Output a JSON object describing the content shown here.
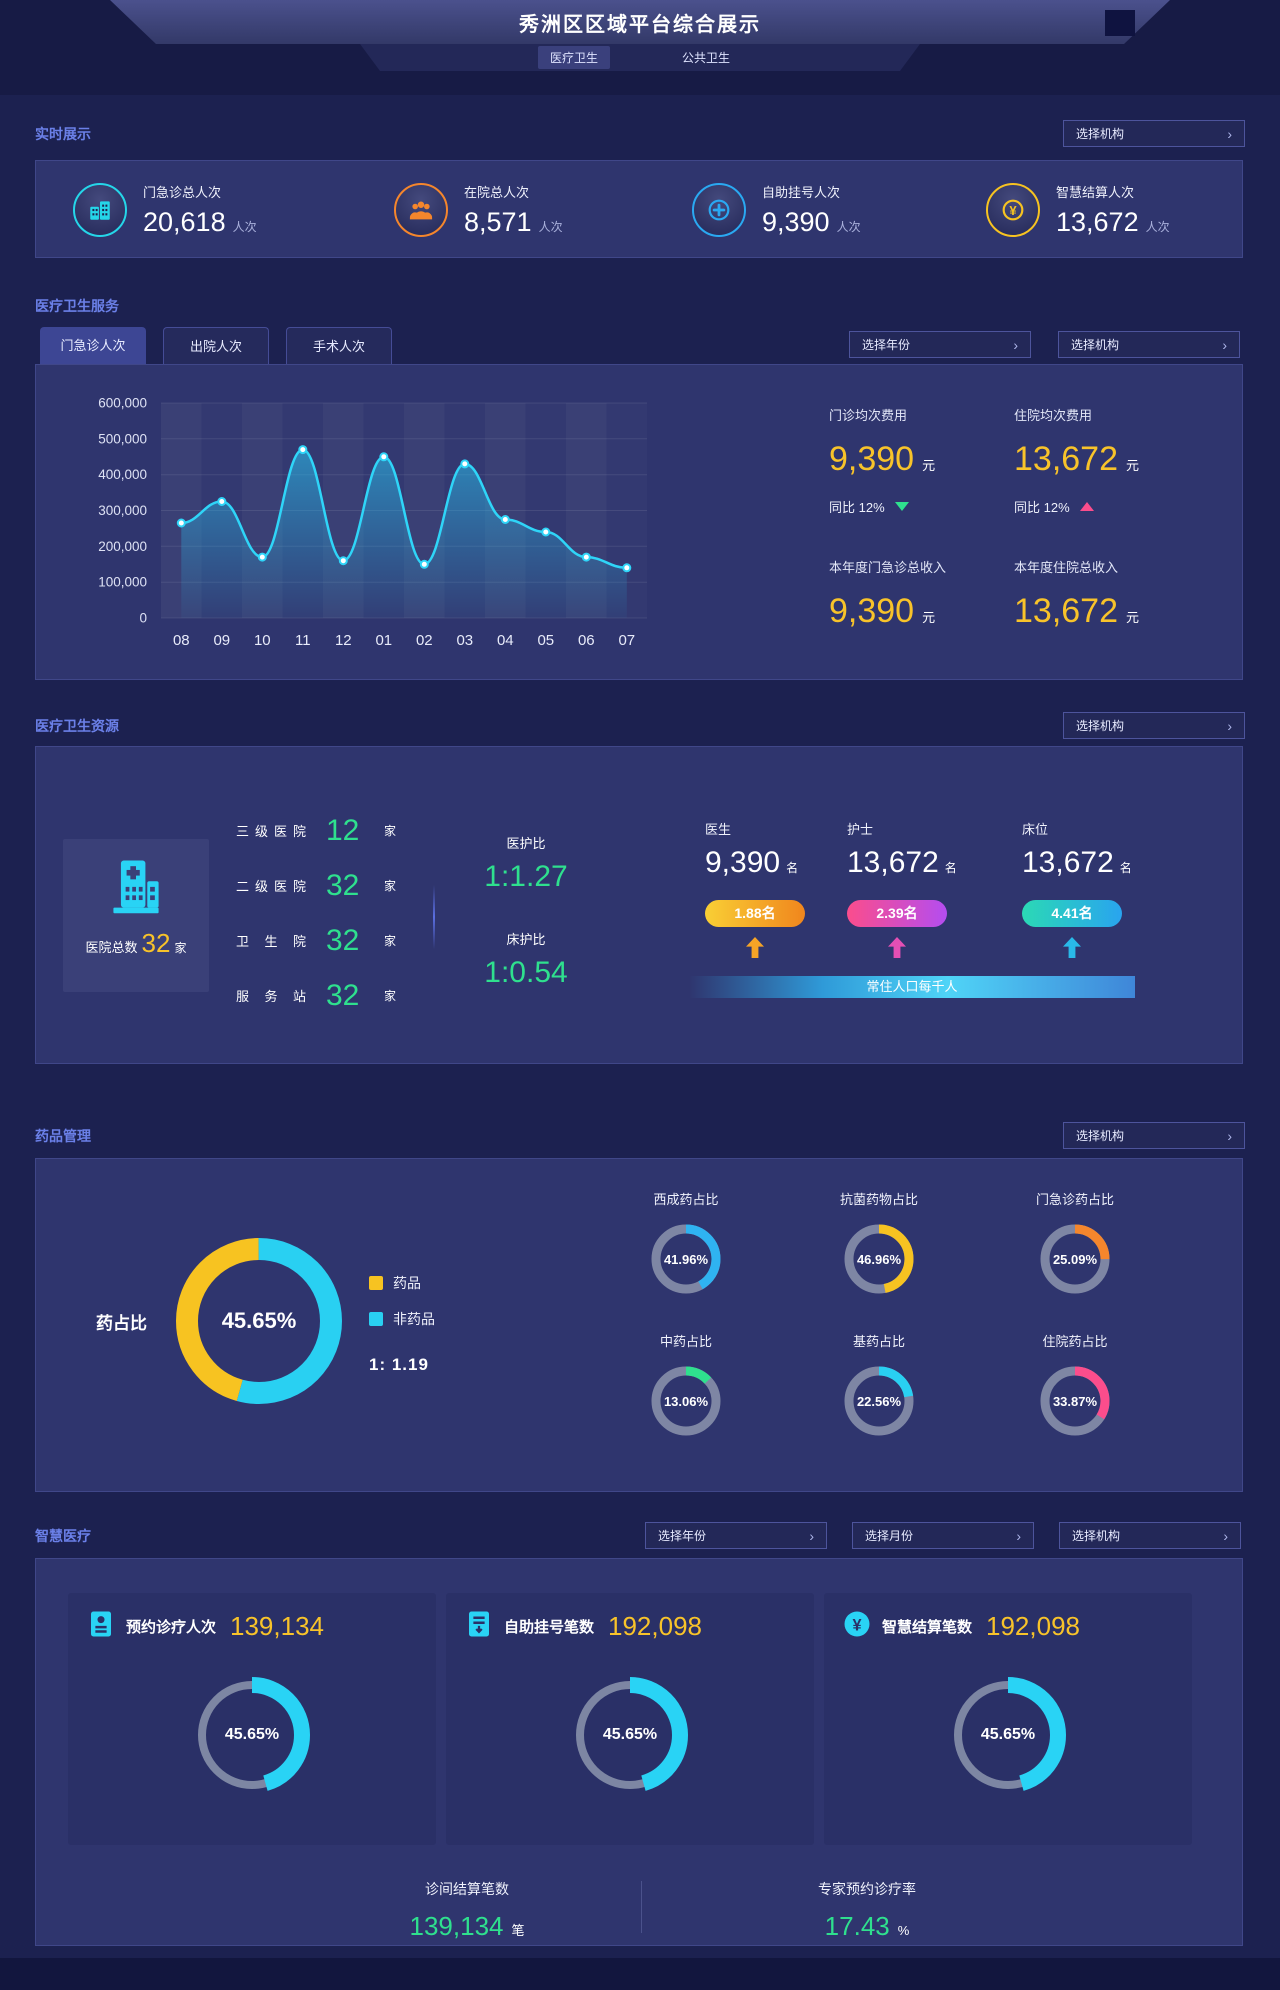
{
  "theme": {
    "bg": "#1c2150",
    "panel": "#2f356e",
    "panel_border": "#404789",
    "card": "#2a3067",
    "accent_blue": "#6b80e8",
    "yellow": "#f8c32a",
    "cyan": "#29d3f5",
    "green": "#2fe08e",
    "pink": "#fb4d8c",
    "orange": "#f5862c",
    "sky": "#2aa9f2",
    "ring_gray": "#7e86a4"
  },
  "header": {
    "title": "秀洲区区域平台综合展示",
    "tabs": [
      {
        "label": "医疗卫生",
        "active": true
      },
      {
        "label": "公共卫生",
        "active": false
      }
    ]
  },
  "controls": {
    "select_org": "选择机构",
    "select_year": "选择年份",
    "select_month": "选择月份",
    "chevron": "›"
  },
  "realtime": {
    "section_label": "实时展示",
    "stats": [
      {
        "icon": "hospital-icon",
        "color": "#25d6e9",
        "label": "门急诊总人次",
        "value": "20,618",
        "unit": "人次"
      },
      {
        "icon": "people-icon",
        "color": "#f5862c",
        "label": "在院总人次",
        "value": "8,571",
        "unit": "人次"
      },
      {
        "icon": "cross-circle-icon",
        "color": "#2aa9f2",
        "label": "自助挂号人次",
        "value": "9,390",
        "unit": "人次"
      },
      {
        "icon": "yuan-icon",
        "color": "#f7c321",
        "label": "智慧结算人次",
        "value": "13,672",
        "unit": "人次"
      }
    ]
  },
  "services": {
    "section_label": "医疗卫生服务",
    "tabs": [
      {
        "label": "门急诊人次",
        "active": true
      },
      {
        "label": "出院人次",
        "active": false
      },
      {
        "label": "手术人次",
        "active": false
      }
    ],
    "stats": [
      {
        "label": "门诊均次费用",
        "value": "9,390",
        "unit": "元",
        "yoy": "同比 12%",
        "trend": "down"
      },
      {
        "label": "住院均次费用",
        "value": "13,672",
        "unit": "元",
        "yoy": "同比 12%",
        "trend": "up"
      },
      {
        "label": "本年度门急诊总收入",
        "value": "9,390",
        "unit": "元"
      },
      {
        "label": "本年度住院总收入",
        "value": "13,672",
        "unit": "元"
      }
    ]
  },
  "chart_data": [
    {
      "type": "area",
      "title": "门急诊人次",
      "x": [
        "08",
        "09",
        "10",
        "11",
        "12",
        "01",
        "02",
        "03",
        "04",
        "05",
        "06",
        "07"
      ],
      "values": [
        265000,
        325000,
        170000,
        470000,
        160000,
        450000,
        150000,
        430000,
        275000,
        240000,
        170000,
        140000
      ],
      "ylim": [
        0,
        600000
      ],
      "ytick_step": 100000,
      "yticks": [
        "600,000",
        "500,000",
        "400,000",
        "300,000",
        "200,000",
        "100,000",
        "0"
      ],
      "line_color": "#2fd5f8",
      "area_color": "#29c7f5",
      "grid": true,
      "legend": "none"
    },
    {
      "type": "pie",
      "title": "药占比",
      "center_label": "45.65%",
      "slices": [
        {
          "name": "非药品",
          "value": 54.35,
          "color": "#29d0f2"
        },
        {
          "name": "药品",
          "value": 45.65,
          "color": "#f7c321"
        }
      ],
      "ratio_label": "1: 1.19"
    },
    {
      "type": "pie",
      "title": "西成药占比",
      "value": 41.96,
      "color": "#2fb3f1"
    },
    {
      "type": "pie",
      "title": "抗菌药物占比",
      "value": 46.96,
      "color": "#f7c321"
    },
    {
      "type": "pie",
      "title": "门急诊药占比",
      "value": 25.09,
      "color": "#f5862c"
    },
    {
      "type": "pie",
      "title": "中药占比",
      "value": 13.06,
      "color": "#2fe08e"
    },
    {
      "type": "pie",
      "title": "基药占比",
      "value": 22.56,
      "color": "#29d0f2"
    },
    {
      "type": "pie",
      "title": "住院药占比",
      "value": 33.87,
      "color": "#fb4d8c"
    },
    {
      "type": "pie",
      "title": "预约诊疗人次",
      "value": 45.65,
      "color": "#29d3f5"
    },
    {
      "type": "pie",
      "title": "自助挂号笔数",
      "value": 45.65,
      "color": "#29d3f5"
    },
    {
      "type": "pie",
      "title": "智慧结算笔数",
      "value": 45.65,
      "color": "#29d3f5"
    }
  ],
  "resources": {
    "section_label": "医疗卫生资源",
    "hospital_total": {
      "label": "医院总数",
      "value": "32",
      "unit": "家"
    },
    "levels": [
      {
        "label": "三级医院",
        "value": "12",
        "unit": "家"
      },
      {
        "label": "二级医院",
        "value": "32",
        "unit": "家"
      },
      {
        "label": "卫生院",
        "value": "32",
        "unit": "家"
      },
      {
        "label": "服务站",
        "value": "32",
        "unit": "家"
      }
    ],
    "ratios": [
      {
        "label": "医护比",
        "value": "1:1.27"
      },
      {
        "label": "床护比",
        "value": "1:0.54"
      }
    ],
    "staff": [
      {
        "label": "医生",
        "value": "9,390",
        "unit": "名",
        "badge": "1.88名",
        "badge_colors": [
          "#f9cf35",
          "#f0861d"
        ],
        "arrow_color": "#f6a426"
      },
      {
        "label": "护士",
        "value": "13,672",
        "unit": "名",
        "badge": "2.39名",
        "badge_colors": [
          "#fb4d8c",
          "#b44df0"
        ],
        "arrow_color": "#e44fb4"
      },
      {
        "label": "床位",
        "value": "13,672",
        "unit": "名",
        "badge": "4.41名",
        "badge_colors": [
          "#2bd9b5",
          "#29a4ef"
        ],
        "arrow_color": "#29b9e8"
      }
    ],
    "per_capita_label": "常住人口每千人"
  },
  "drugs": {
    "section_label": "药品管理",
    "main": {
      "label": "药占比",
      "center_label": "45.65%",
      "slices": [
        {
          "name": "非药品",
          "pct": 54.35,
          "color": "#29d0f2"
        },
        {
          "name": "药品",
          "pct": 45.65,
          "color": "#f7c321"
        }
      ],
      "legend": [
        {
          "label": "药品",
          "color": "#f7c321"
        },
        {
          "label": "非药品",
          "color": "#29d0f2"
        }
      ],
      "ratio": "1:  1.19"
    },
    "donuts": [
      {
        "title": "西成药占比",
        "value": "41.96%",
        "pct": 41.96,
        "color": "#2fb3f1"
      },
      {
        "title": "抗菌药物占比",
        "value": "46.96%",
        "pct": 46.96,
        "color": "#f7c321"
      },
      {
        "title": "门急诊药占比",
        "value": "25.09%",
        "pct": 25.09,
        "color": "#f5862c"
      },
      {
        "title": "中药占比",
        "value": "13.06%",
        "pct": 13.06,
        "color": "#2fe08e"
      },
      {
        "title": "基药占比",
        "value": "22.56%",
        "pct": 22.56,
        "color": "#29d0f2"
      },
      {
        "title": "住院药占比",
        "value": "33.87%",
        "pct": 33.87,
        "color": "#fb4d8c"
      }
    ]
  },
  "smart": {
    "section_label": "智慧医疗",
    "cards": [
      {
        "icon": "id-card-icon",
        "label": "预约诊疗人次",
        "value": "139,134",
        "pct": 45.65,
        "pct_label": "45.65%",
        "donut_color": "#29d3f5"
      },
      {
        "icon": "register-icon",
        "label": "自助挂号笔数",
        "value": "192,098",
        "pct": 45.65,
        "pct_label": "45.65%",
        "donut_color": "#29d3f5"
      },
      {
        "icon": "yuan-circle-icon",
        "label": "智慧结算笔数",
        "value": "192,098",
        "pct": 45.65,
        "pct_label": "45.65%",
        "donut_color": "#29d3f5"
      }
    ],
    "footer": [
      {
        "label": "诊间结算笔数",
        "value": "139,134",
        "unit": "笔"
      },
      {
        "label": "专家预约诊疗率",
        "value": "17.43",
        "unit": "%"
      }
    ]
  }
}
